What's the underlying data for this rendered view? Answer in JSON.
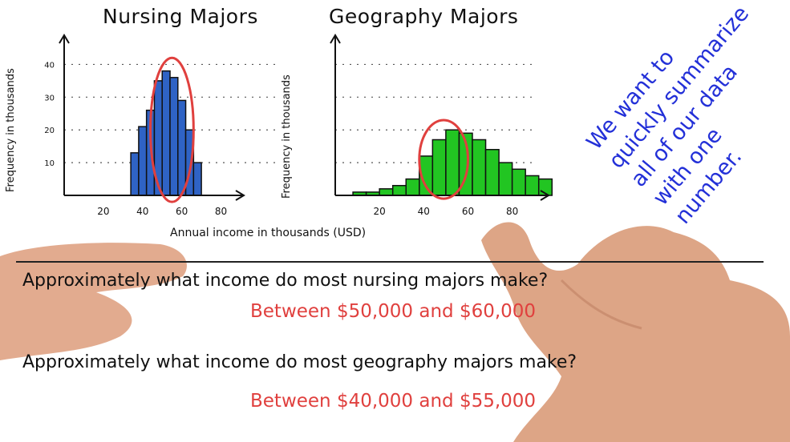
{
  "chart_data": [
    {
      "type": "bar",
      "title": "Nursing Majors",
      "ylabel": "Frequency in thousands",
      "xlim": [
        0,
        90
      ],
      "ylim": [
        0,
        45
      ],
      "x_ticks": [
        "20",
        "40",
        "60",
        "80"
      ],
      "y_ticks": [
        "10",
        "20",
        "30",
        "40"
      ],
      "bar_width": 4,
      "bar_left_edges": [
        30,
        34,
        38,
        42,
        46,
        50,
        54,
        58,
        62,
        66,
        70,
        74
      ],
      "values": [
        0,
        13,
        21,
        26,
        35,
        38,
        36,
        29,
        20,
        10,
        0,
        0
      ],
      "color": "#2f63c5",
      "highlight_ellipse": {
        "center_x": 55,
        "center_y": 20,
        "rx": 11,
        "ry": 22
      },
      "grid": "dotted horizontal"
    },
    {
      "type": "bar",
      "title": "Geography Majors",
      "ylabel": "Frequency in thousands",
      "xlim": [
        0,
        95
      ],
      "ylim": [
        0,
        45
      ],
      "x_ticks": [
        "20",
        "40",
        "60",
        "80"
      ],
      "y_ticks": [],
      "bar_width": 6,
      "bar_left_edges": [
        2,
        8,
        14,
        20,
        26,
        32,
        38,
        44,
        50,
        56,
        62,
        68,
        74,
        80,
        86,
        92
      ],
      "values": [
        0,
        1,
        1,
        2,
        3,
        5,
        12,
        17,
        20,
        19,
        17,
        14,
        10,
        8,
        6,
        5
      ],
      "color": "#22c522",
      "highlight_ellipse": {
        "center_x": 49,
        "center_y": 11,
        "rx": 11,
        "ry": 12
      },
      "grid": "dotted horizontal"
    }
  ],
  "shared_xlabel": "Annual income in thousands (USD)",
  "questions": [
    {
      "question": "Approximately what income do most nursing majors make?",
      "answer": "Between $50,000 and $60,000"
    },
    {
      "question": "Approximately what income do most geography majors make?",
      "answer": "Between $40,000 and $55,000"
    }
  ],
  "side_note": [
    "We want to",
    "quickly summarize",
    "all of our data",
    "with one",
    "number."
  ],
  "colors": {
    "nursing": "#2f63c5",
    "geography": "#22c522",
    "answer": "#e0403e",
    "note": "#2330d8",
    "circle": "#e0403e"
  }
}
